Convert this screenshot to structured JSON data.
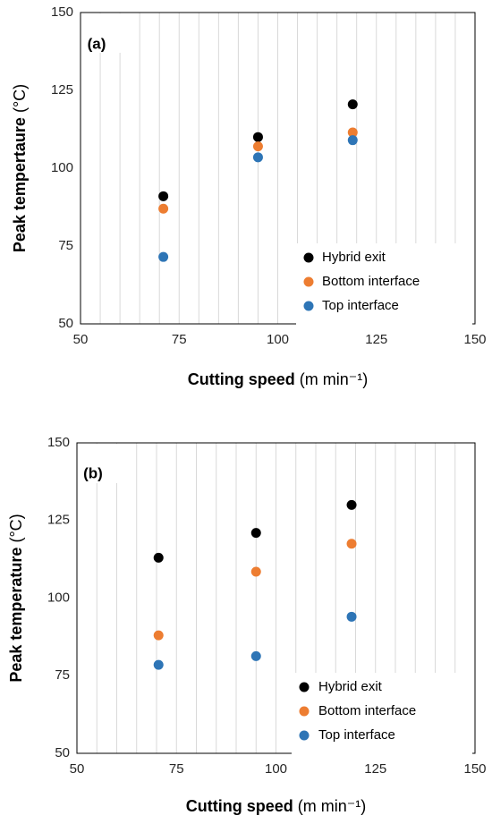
{
  "chart_data": [
    {
      "type": "scatter",
      "panel_label": "(a)",
      "xlabel": "Cutting speed",
      "xlabel_unit": "(m min⁻¹)",
      "ylabel": "Peak tempertaure",
      "ylabel_unit": "(°C)",
      "xlim": [
        50,
        150
      ],
      "ylim": [
        50,
        150
      ],
      "xticks": [
        "50",
        "75",
        "100",
        "125",
        "150"
      ],
      "yticks": [
        "50",
        "75",
        "100",
        "125",
        "150"
      ],
      "grid": "vertical",
      "legend_position": "bottom-right",
      "series": [
        {
          "name": "Hybrid exit",
          "color": "#000000",
          "x": [
            71,
            95,
            119
          ],
          "y": [
            91,
            110,
            120.5
          ]
        },
        {
          "name": "Bottom interface",
          "color": "#ed7d31",
          "x": [
            71,
            95,
            119
          ],
          "y": [
            87,
            107,
            111.5
          ]
        },
        {
          "name": "Top interface",
          "color": "#2e75b6",
          "x": [
            71,
            95,
            119
          ],
          "y": [
            71.5,
            103.5,
            109
          ]
        }
      ]
    },
    {
      "type": "scatter",
      "panel_label": "(b)",
      "xlabel": "Cutting speed",
      "xlabel_unit": "(m min⁻¹)",
      "ylabel": "Peak temperature",
      "ylabel_unit": "(°C)",
      "xlim": [
        50,
        150
      ],
      "ylim": [
        50,
        150
      ],
      "xticks": [
        "50",
        "75",
        "100",
        "125",
        "150"
      ],
      "yticks": [
        "50",
        "75",
        "100",
        "125",
        "150"
      ],
      "grid": "vertical",
      "legend_position": "bottom-right",
      "series": [
        {
          "name": "Hybrid exit",
          "color": "#000000",
          "x": [
            70.5,
            95,
            119
          ],
          "y": [
            113,
            121,
            130
          ]
        },
        {
          "name": "Bottom interface",
          "color": "#ed7d31",
          "x": [
            70.5,
            95,
            119
          ],
          "y": [
            88,
            108.5,
            117.5
          ]
        },
        {
          "name": "Top interface",
          "color": "#2e75b6",
          "x": [
            70.5,
            95,
            119
          ],
          "y": [
            78.5,
            81.3,
            94
          ]
        }
      ]
    }
  ]
}
